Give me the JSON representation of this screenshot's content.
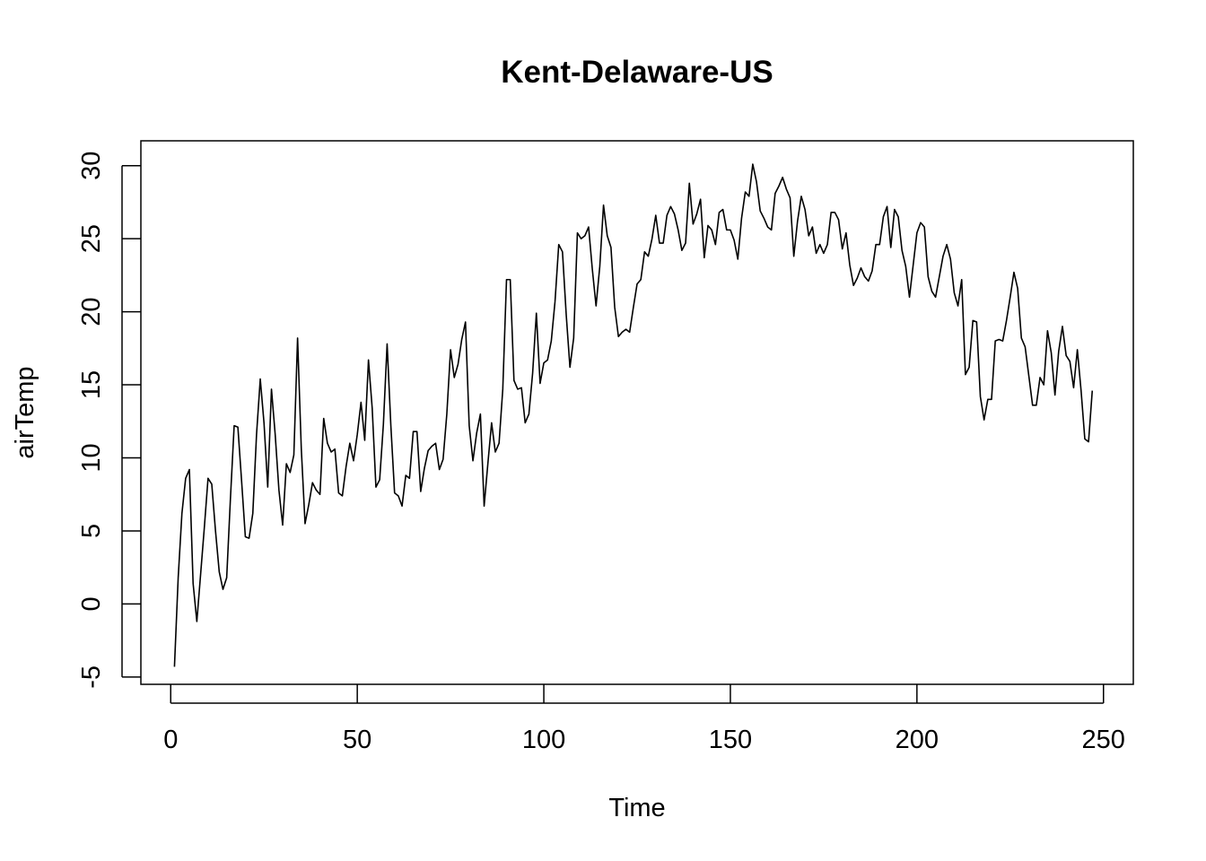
{
  "chart_data": {
    "type": "line",
    "title": "Kent-Delaware-US",
    "xlabel": "Time",
    "ylabel": "airTemp",
    "xlim": [
      -8,
      258
    ],
    "ylim": [
      -5.5,
      31.7
    ],
    "x_ticks": [
      "0",
      "50",
      "100",
      "150",
      "200",
      "250"
    ],
    "x_tick_values": [
      0,
      50,
      100,
      150,
      200,
      250
    ],
    "y_ticks": [
      "-5",
      "0",
      "5",
      "10",
      "15",
      "20",
      "25",
      "30"
    ],
    "y_tick_values": [
      -5,
      0,
      5,
      10,
      15,
      20,
      25,
      30
    ],
    "grid": false,
    "line_color": "#000000",
    "x_start": 1,
    "series": [
      {
        "values": [
          -4.3,
          1.8,
          6.2,
          8.6,
          9.2,
          1.4,
          -1.2,
          2.0,
          5.2,
          8.6,
          8.2,
          5.0,
          2.2,
          1.0,
          1.8,
          7.2,
          12.2,
          12.1,
          8.4,
          4.6,
          4.5,
          6.2,
          11.6,
          15.4,
          12.4,
          8.0,
          14.7,
          11.6,
          7.8,
          5.4,
          9.6,
          9.0,
          10.2,
          18.2,
          10.6,
          5.5,
          6.8,
          8.3,
          7.8,
          7.5,
          12.7,
          11.0,
          10.4,
          10.6,
          7.6,
          7.4,
          9.4,
          11.0,
          9.8,
          11.6,
          13.8,
          11.2,
          16.7,
          13.4,
          8.0,
          8.5,
          12.3,
          17.8,
          12.2,
          7.6,
          7.4,
          6.7,
          8.8,
          8.6,
          11.8,
          11.8,
          7.7,
          9.3,
          10.5,
          10.8,
          11.0,
          9.2,
          9.9,
          13.0,
          17.4,
          15.5,
          16.4,
          18.1,
          19.3,
          12.2,
          9.8,
          11.7,
          13.0,
          6.7,
          9.6,
          12.4,
          10.4,
          11.0,
          14.7,
          22.2,
          22.2,
          15.3,
          14.7,
          14.8,
          12.4,
          13.0,
          15.8,
          19.9,
          15.1,
          16.5,
          16.7,
          18.0,
          20.7,
          24.6,
          24.1,
          19.8,
          16.2,
          18.2,
          25.4,
          25.0,
          25.2,
          25.8,
          22.9,
          20.4,
          23.1,
          27.3,
          25.2,
          24.4,
          20.3,
          18.3,
          18.6,
          18.8,
          18.6,
          20.3,
          21.9,
          22.2,
          24.1,
          23.8,
          25.0,
          26.6,
          24.7,
          24.7,
          26.6,
          27.2,
          26.7,
          25.6,
          24.2,
          24.7,
          28.8,
          26.0,
          26.7,
          27.7,
          23.7,
          25.9,
          25.6,
          24.6,
          26.8,
          27.0,
          25.6,
          25.6,
          24.9,
          23.6,
          26.4,
          28.2,
          27.9,
          30.1,
          28.9,
          26.9,
          26.4,
          25.8,
          25.6,
          28.1,
          28.6,
          29.2,
          28.4,
          27.8,
          23.8,
          26.2,
          27.9,
          27.0,
          25.2,
          25.8,
          24.0,
          24.6,
          24.0,
          24.6,
          26.8,
          26.8,
          26.3,
          24.3,
          25.4,
          23.2,
          21.8,
          22.3,
          23.0,
          22.4,
          22.1,
          22.8,
          24.6,
          24.6,
          26.5,
          27.2,
          24.4,
          27.0,
          26.5,
          24.2,
          23.1,
          21.0,
          23.2,
          25.4,
          26.1,
          25.8,
          22.4,
          21.4,
          21.0,
          22.4,
          23.8,
          24.6,
          23.6,
          21.3,
          20.4,
          22.2,
          15.7,
          16.2,
          19.4,
          19.3,
          14.2,
          12.6,
          14.0,
          14.0,
          18.0,
          18.1,
          18.0,
          19.4,
          21.0,
          22.7,
          21.6,
          18.2,
          17.6,
          15.6,
          13.6,
          13.6,
          15.5,
          15.0,
          18.7,
          17.2,
          14.3,
          17.3,
          19.0,
          17.0,
          16.6,
          14.8,
          17.4,
          14.6,
          11.3,
          11.1,
          14.6
        ]
      }
    ]
  }
}
